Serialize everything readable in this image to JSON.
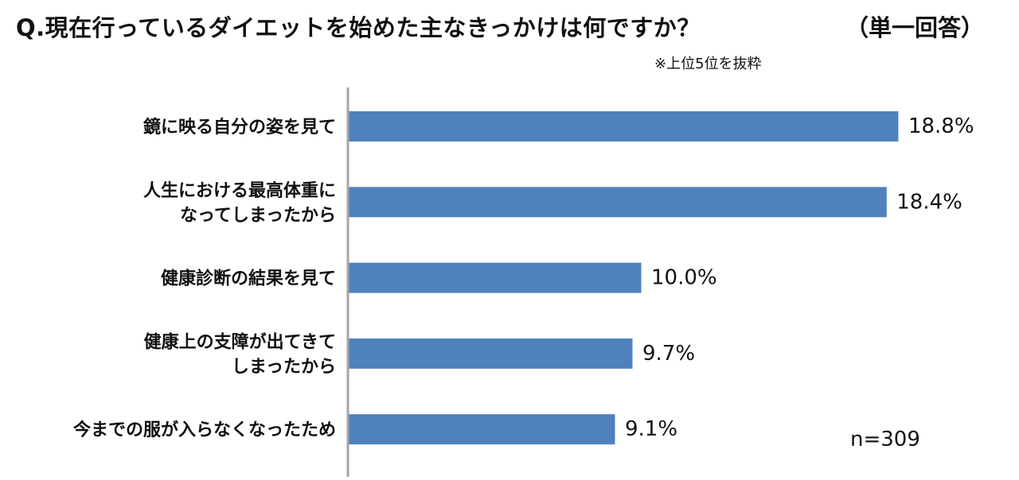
{
  "header": {
    "title": "Q.現在行っているダイエットを始めた主なきっかけは何ですか？",
    "answer_type": "（単一回答）",
    "note": "※上位5位を抜粋"
  },
  "footer": {
    "sample_size": "n=309"
  },
  "chart_data": {
    "type": "bar",
    "orientation": "horizontal",
    "categories": [
      [
        "鏡に映る自分の姿を見て"
      ],
      [
        "人生における最高体重に",
        "なってしまったから"
      ],
      [
        "健康診断の結果を見て"
      ],
      [
        "健康上の支障が出てきて",
        "しまったから"
      ],
      [
        "今までの服が入らなくなったため"
      ]
    ],
    "values": [
      18.8,
      18.4,
      10.0,
      9.7,
      9.1
    ],
    "value_labels": [
      "18.8%",
      "18.4%",
      "10.0%",
      "9.7%",
      "9.1%"
    ],
    "unit": "%",
    "bar_color": "#4f81bd",
    "axis_color": "#a6a6a6",
    "grid": false,
    "legend": false
  }
}
